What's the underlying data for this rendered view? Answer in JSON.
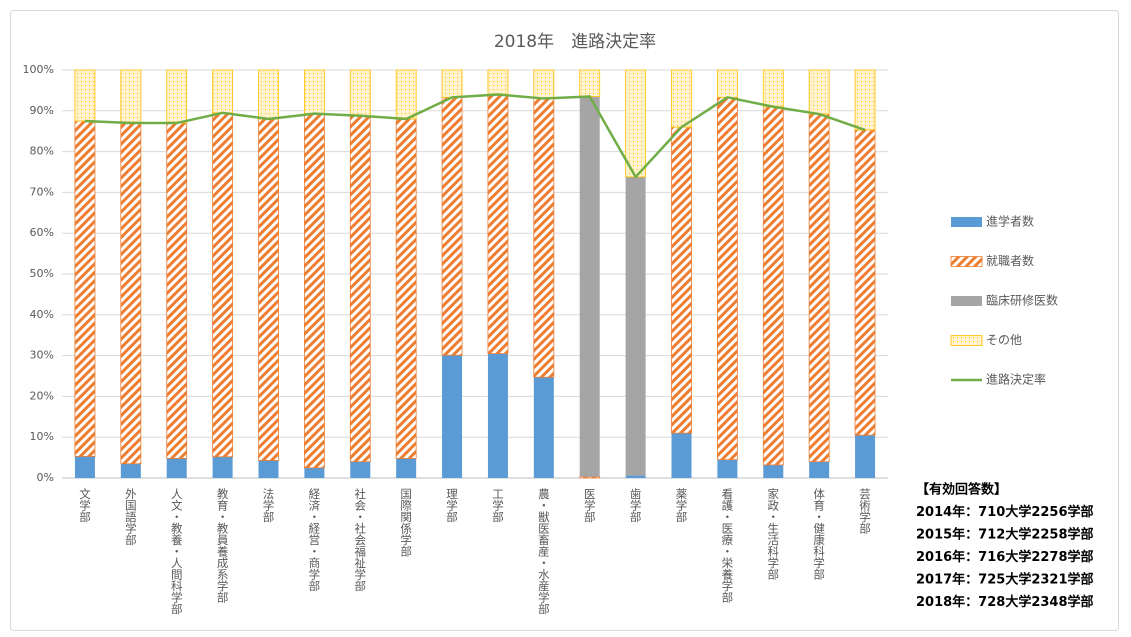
{
  "chart_data": {
    "type": "bar",
    "stacked": true,
    "title": "2018年　進路決定率",
    "categories": [
      "文学部",
      "外国語学部",
      "人文・教養・人間科学部",
      "教育・教員養成系学部",
      "法学部",
      "経済・経営・商学部",
      "社会・社会福祉学部",
      "国際関係学部",
      "理学部",
      "工学部",
      "農・獣医畜産・水産学部",
      "医学部",
      "歯学部",
      "薬学部",
      "看護・医療・栄養学部",
      "家政・生活科学部",
      "体育・健康科学部",
      "芸術学部"
    ],
    "series": [
      {
        "name": "進学者数",
        "type": "bar",
        "color": "#5b9bd5",
        "fill_pattern": "solid",
        "values": [
          5.3,
          3.5,
          4.8,
          5.2,
          4.3,
          2.5,
          4.0,
          4.8,
          30.1,
          30.5,
          24.7,
          0,
          0.6,
          11,
          4.5,
          3.2,
          4.0,
          10.5
        ]
      },
      {
        "name": "就職者数",
        "type": "bar",
        "color": "#ed7d31",
        "fill_pattern": "hatch",
        "values": [
          82.2,
          83.5,
          82.2,
          84.3,
          83.7,
          86.8,
          84.8,
          83.2,
          63.2,
          63.5,
          68.3,
          0.3,
          0,
          75,
          88.8,
          87.8,
          85.2,
          74.8
        ]
      },
      {
        "name": "臨床研修医数",
        "type": "bar",
        "color": "#a5a5a5",
        "fill_pattern": "solid",
        "values": [
          0,
          0,
          0,
          0,
          0,
          0,
          0,
          0,
          0,
          0,
          0,
          93.2,
          73.2,
          0,
          0,
          0,
          0,
          0
        ]
      },
      {
        "name": "その他",
        "type": "bar",
        "color": "#ffc000",
        "fill_pattern": "dots",
        "values": [
          12.5,
          13,
          13,
          10.5,
          12,
          10.7,
          11.2,
          12,
          6.7,
          6,
          7,
          6.5,
          26.2,
          14,
          6.7,
          9,
          10.8,
          14.7
        ]
      },
      {
        "name": "進路決定率",
        "type": "line",
        "color": "#70ad47",
        "values": [
          87.5,
          87,
          87,
          89.5,
          88,
          89.3,
          88.8,
          88,
          93.3,
          94,
          93,
          93.5,
          73.8,
          86,
          93.3,
          91,
          89.2,
          85.3
        ]
      }
    ],
    "ylim": [
      0,
      100
    ],
    "yticks": [
      {
        "value": 0,
        "label": "0%"
      },
      {
        "value": 10,
        "label": "10%"
      },
      {
        "value": 20,
        "label": "20%"
      },
      {
        "value": 30,
        "label": "30%"
      },
      {
        "value": 40,
        "label": "40%"
      },
      {
        "value": 50,
        "label": "50%"
      },
      {
        "value": 60,
        "label": "60%"
      },
      {
        "value": 70,
        "label": "70%"
      },
      {
        "value": 80,
        "label": "80%"
      },
      {
        "value": 90,
        "label": "90%"
      },
      {
        "value": 100,
        "label": "100%"
      }
    ],
    "grid": true,
    "legend": "right",
    "annotations": [
      "【有効回答数】",
      "2014年：710大学2256学部",
      "2015年：712大学2258学部",
      "2016年：716大学2278学部",
      "2017年：725大学2321学部",
      "2018年：728大学2348学部"
    ]
  }
}
